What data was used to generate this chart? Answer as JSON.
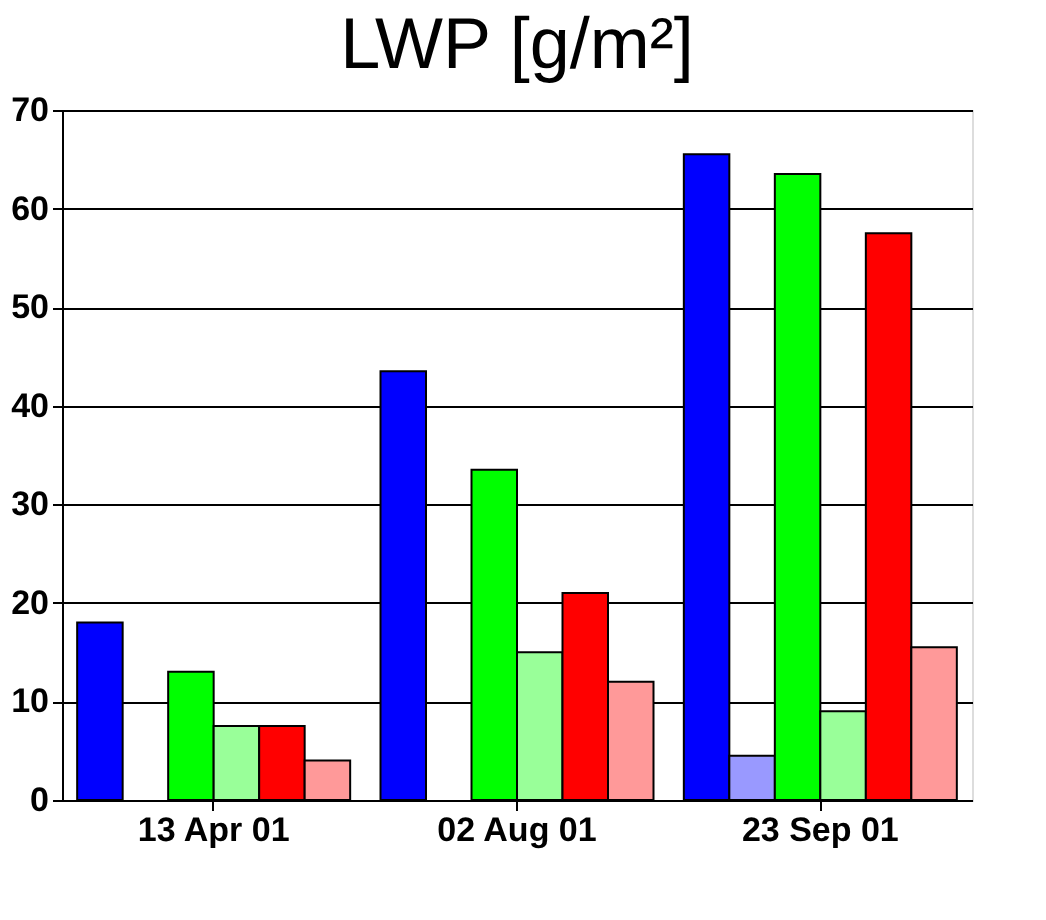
{
  "chart_data": {
    "type": "bar",
    "title": "LWP [g/m²]",
    "categories": [
      "13 Apr 01",
      "02 Aug 01",
      "23 Sep 01"
    ],
    "series": [
      {
        "color": "#0000ff",
        "values": [
          18,
          43.5,
          65.5
        ]
      },
      {
        "color": "#9999ff",
        "values": [
          null,
          null,
          4.5
        ]
      },
      {
        "color": "#00ff00",
        "values": [
          13,
          33.5,
          63.5
        ]
      },
      {
        "color": "#99ff99",
        "values": [
          7.5,
          15,
          9
        ]
      },
      {
        "color": "#ff0000",
        "values": [
          7.5,
          21,
          57.5
        ]
      },
      {
        "color": "#ff9999",
        "values": [
          4,
          12,
          15.5
        ]
      }
    ],
    "ylim": [
      0,
      70
    ],
    "yticks": [
      0,
      10,
      20,
      30,
      40,
      50,
      60,
      70
    ],
    "grid": "y"
  }
}
